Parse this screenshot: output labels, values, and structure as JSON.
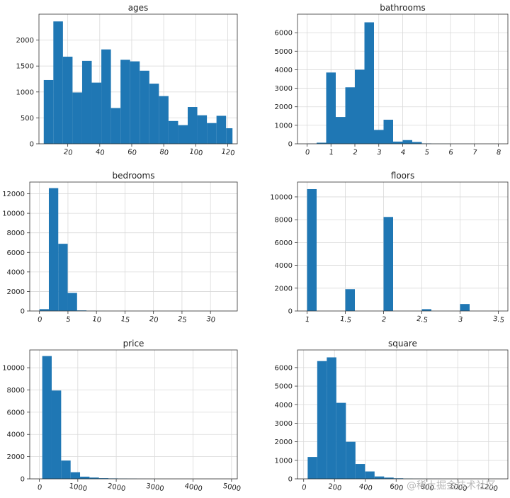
{
  "figure": {
    "watermark": "@稀土掘金技术社区"
  },
  "colors": {
    "bar": "#1f77b4",
    "grid": "#d9d9d9",
    "axis": "#333333"
  },
  "chart_data": [
    {
      "type": "bar",
      "title": "ages",
      "grid": true,
      "xlim": [
        2,
        126
      ],
      "ylim": [
        0,
        2500
      ],
      "xticks": [
        20,
        40,
        60,
        80,
        100,
        120
      ],
      "yticks": [
        0,
        500,
        1000,
        1500,
        2000
      ],
      "bin_edges": [
        5,
        11,
        17,
        23,
        29,
        35,
        41,
        47,
        53,
        59,
        65,
        71,
        77,
        83,
        89,
        95,
        101,
        107,
        113,
        119,
        123
      ],
      "values": [
        1230,
        2360,
        1680,
        990,
        1600,
        1180,
        1820,
        690,
        1620,
        1590,
        1410,
        1160,
        920,
        440,
        360,
        710,
        550,
        400,
        540,
        300
      ]
    },
    {
      "type": "bar",
      "title": "bathrooms",
      "grid": true,
      "xlim": [
        -0.4,
        8.4
      ],
      "ylim": [
        0,
        7000
      ],
      "xticks": [
        0,
        1,
        2,
        3,
        4,
        5,
        6,
        7,
        8
      ],
      "yticks": [
        0,
        1000,
        2000,
        3000,
        4000,
        5000,
        6000
      ],
      "bin_edges": [
        0,
        0.4,
        0.8,
        1.2,
        1.6,
        2.0,
        2.4,
        2.8,
        3.2,
        3.6,
        4.0,
        4.4,
        4.8,
        5.2,
        5.6,
        6.0,
        6.4,
        6.8,
        7.2,
        7.6,
        8.0
      ],
      "values": [
        10,
        60,
        3850,
        1450,
        3050,
        4000,
        6560,
        750,
        1300,
        120,
        200,
        100,
        20,
        5,
        5,
        2,
        2,
        1,
        0,
        1
      ]
    },
    {
      "type": "bar",
      "title": "bedrooms",
      "grid": true,
      "xlim": [
        -1.7,
        34.7
      ],
      "ylim": [
        0,
        13200
      ],
      "xticks": [
        0,
        5,
        10,
        15,
        20,
        25,
        30
      ],
      "yticks": [
        0,
        2000,
        4000,
        6000,
        8000,
        10000,
        12000
      ],
      "bin_edges": [
        0,
        1.65,
        3.3,
        4.95,
        6.6,
        8.25,
        9.9,
        11.55,
        13.2,
        14.85,
        16.5,
        18.15,
        19.8,
        21.45,
        23.1,
        24.75,
        26.4,
        28.05,
        29.7,
        31.35,
        33
      ],
      "values": [
        190,
        12580,
        6880,
        1850,
        60,
        15,
        3,
        1,
        0,
        0,
        0,
        0,
        0,
        0,
        0,
        0,
        0,
        0,
        0,
        1
      ]
    },
    {
      "type": "bar",
      "title": "floors",
      "grid": true,
      "xlim": [
        0.875,
        3.625
      ],
      "ylim": [
        0,
        11300
      ],
      "xticks": [
        1.0,
        1.5,
        2.0,
        2.5,
        3.0,
        3.5
      ],
      "yticks": [
        0,
        2000,
        4000,
        6000,
        8000,
        10000
      ],
      "bin_edges": [
        1.0,
        1.125,
        1.25,
        1.375,
        1.5,
        1.625,
        1.75,
        1.875,
        2.0,
        2.125,
        2.25,
        2.375,
        2.5,
        2.625,
        2.75,
        2.875,
        3.0,
        3.125,
        3.25,
        3.375,
        3.5
      ],
      "values": [
        10680,
        0,
        0,
        0,
        1910,
        0,
        0,
        0,
        8240,
        0,
        0,
        0,
        160,
        0,
        0,
        0,
        610,
        0,
        0,
        0
      ]
    },
    {
      "type": "bar",
      "title": "price",
      "grid": true,
      "xlim": [
        -250,
        5150
      ],
      "ylim": [
        0,
        11600
      ],
      "xticks": [
        0,
        1000,
        2000,
        3000,
        4000,
        5000
      ],
      "yticks": [
        0,
        2000,
        4000,
        6000,
        8000,
        10000
      ],
      "bin_edges": [
        75,
        321,
        567,
        813,
        1059,
        1305,
        1551,
        1797,
        2043,
        2289,
        2535,
        2781,
        3027,
        3273,
        3519,
        3765,
        4011,
        4257,
        4503,
        4749,
        4995
      ],
      "values": [
        11050,
        7950,
        1650,
        600,
        200,
        120,
        60,
        40,
        30,
        20,
        5,
        3,
        2,
        1,
        1,
        0,
        0,
        0,
        0,
        1
      ]
    },
    {
      "type": "bar",
      "title": "square",
      "grid": true,
      "xlim": [
        -40,
        1325
      ],
      "ylim": [
        0,
        6950
      ],
      "xticks": [
        0,
        200,
        400,
        600,
        800,
        1000,
        1200
      ],
      "yticks": [
        0,
        1000,
        2000,
        3000,
        4000,
        5000,
        6000
      ],
      "bin_edges": [
        26,
        88,
        150,
        212,
        274,
        336,
        398,
        460,
        522,
        584,
        646,
        708,
        770,
        832,
        894,
        956,
        1018,
        1080,
        1142,
        1204,
        1266
      ],
      "values": [
        1180,
        6350,
        6550,
        4100,
        2000,
        800,
        400,
        130,
        70,
        30,
        15,
        8,
        5,
        3,
        1,
        1,
        0,
        0,
        0,
        1
      ]
    }
  ]
}
